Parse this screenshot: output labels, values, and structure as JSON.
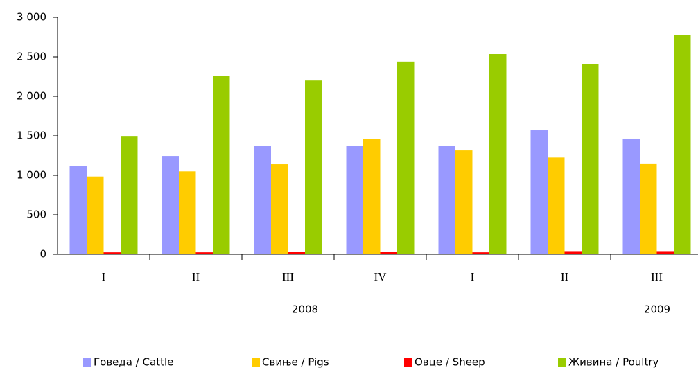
{
  "chart_data": {
    "type": "bar",
    "categories": [
      "I",
      "II",
      "III",
      "IV",
      "I",
      "II",
      "III"
    ],
    "groups": [
      "2008",
      "2009"
    ],
    "series": [
      {
        "name": "Говеда / Cattle",
        "color": "#9999ff",
        "values": [
          1120,
          1245,
          1375,
          1375,
          1375,
          1570,
          1465
        ]
      },
      {
        "name": "Свиње / Pigs",
        "color": "#ffcc00",
        "values": [
          985,
          1050,
          1140,
          1460,
          1315,
          1225,
          1150
        ]
      },
      {
        "name": "Овце / Sheep",
        "color": "#ff0000",
        "values": [
          25,
          25,
          30,
          30,
          25,
          40,
          40
        ]
      },
      {
        "name": "Живина / Poultry",
        "color": "#99cc00",
        "values": [
          1490,
          2255,
          2200,
          2440,
          2535,
          2410,
          2775
        ]
      }
    ],
    "ylim": [
      0,
      3000
    ],
    "yticks": [
      0,
      500,
      {
        "value": 1000,
        "label": "1 000"
      },
      {
        "value": 1500,
        "label": "1 500"
      },
      {
        "value": 2000,
        "label": "2 000"
      },
      {
        "value": 2500,
        "label": "2 500"
      },
      {
        "value": 3000,
        "label": "3 000"
      }
    ],
    "grid": false
  }
}
